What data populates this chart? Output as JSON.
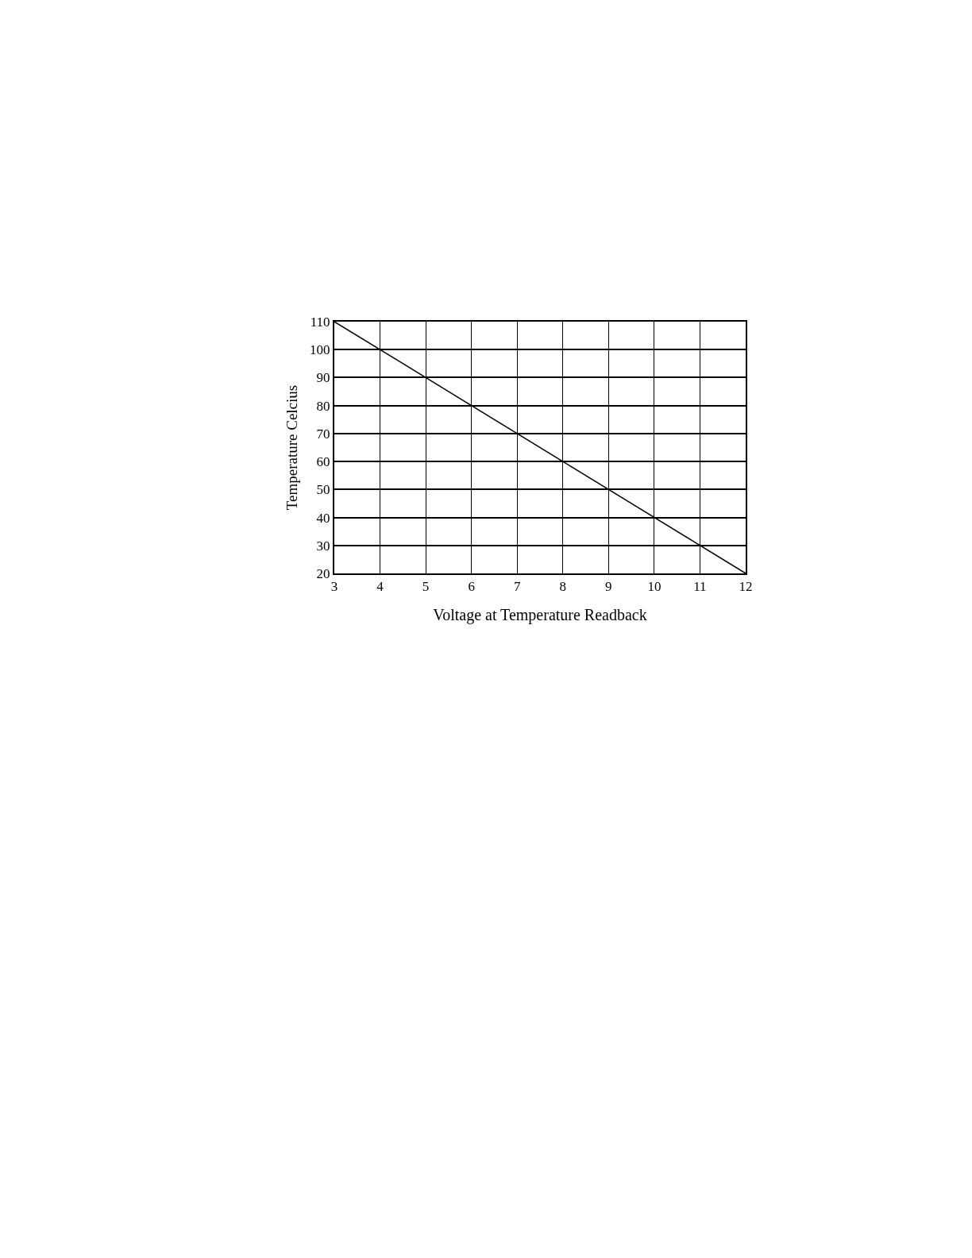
{
  "chart_data": {
    "type": "line",
    "xlabel": "Voltage at Temperature Readback",
    "ylabel": "Temperature Celcius",
    "x": [
      3,
      12
    ],
    "series": [
      {
        "color": "#000000",
        "values": [
          110,
          20
        ]
      }
    ],
    "xlim": [
      3,
      12
    ],
    "xticks": [
      3,
      4,
      5,
      6,
      7,
      8,
      9,
      10,
      11,
      12
    ],
    "ylim": [
      20,
      110
    ],
    "yticks": [
      20,
      30,
      40,
      50,
      60,
      70,
      80,
      90,
      100,
      110
    ],
    "grid": true,
    "marker": "none",
    "line_style": "solid"
  }
}
